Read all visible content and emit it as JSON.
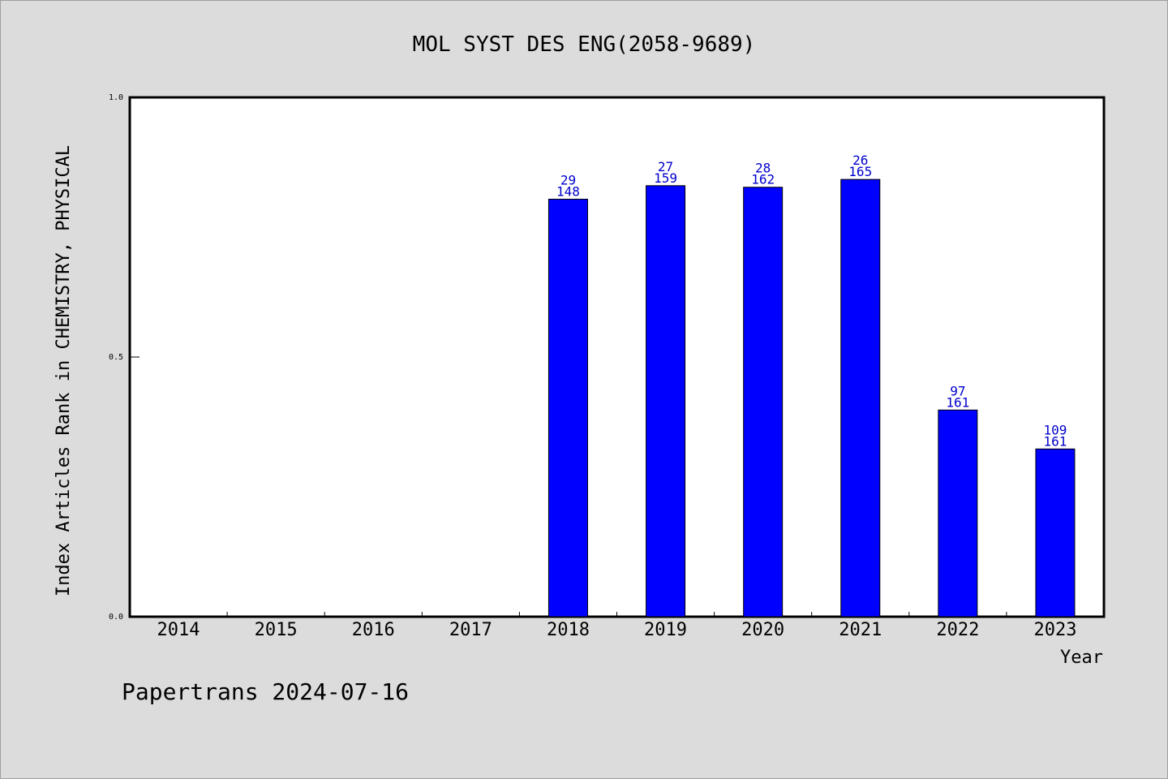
{
  "chart_data": {
    "type": "bar",
    "title": "MOL SYST DES ENG(2058-9689)",
    "xlabel": "Year",
    "ylabel": "Index Articles Rank in CHEMISTRY, PHYSICAL",
    "ylim": [
      0,
      1.0
    ],
    "yticks": [
      "0.0",
      "0.5",
      "1.0"
    ],
    "grid": false,
    "categories": [
      "2014",
      "2015",
      "2016",
      "2017",
      "2018",
      "2019",
      "2020",
      "2021",
      "2022",
      "2023"
    ],
    "series": [
      {
        "values": [
          null,
          null,
          null,
          null,
          0.804,
          0.83,
          0.827,
          0.842,
          0.398,
          0.323
        ],
        "rank": [
          null,
          null,
          null,
          null,
          29,
          27,
          28,
          26,
          97,
          109
        ],
        "total": [
          null,
          null,
          null,
          null,
          148,
          159,
          162,
          165,
          161,
          161
        ]
      }
    ],
    "bar_color": "#0000ff",
    "label_color": "#0000cc"
  },
  "footer": "Papertrans 2024-07-16"
}
